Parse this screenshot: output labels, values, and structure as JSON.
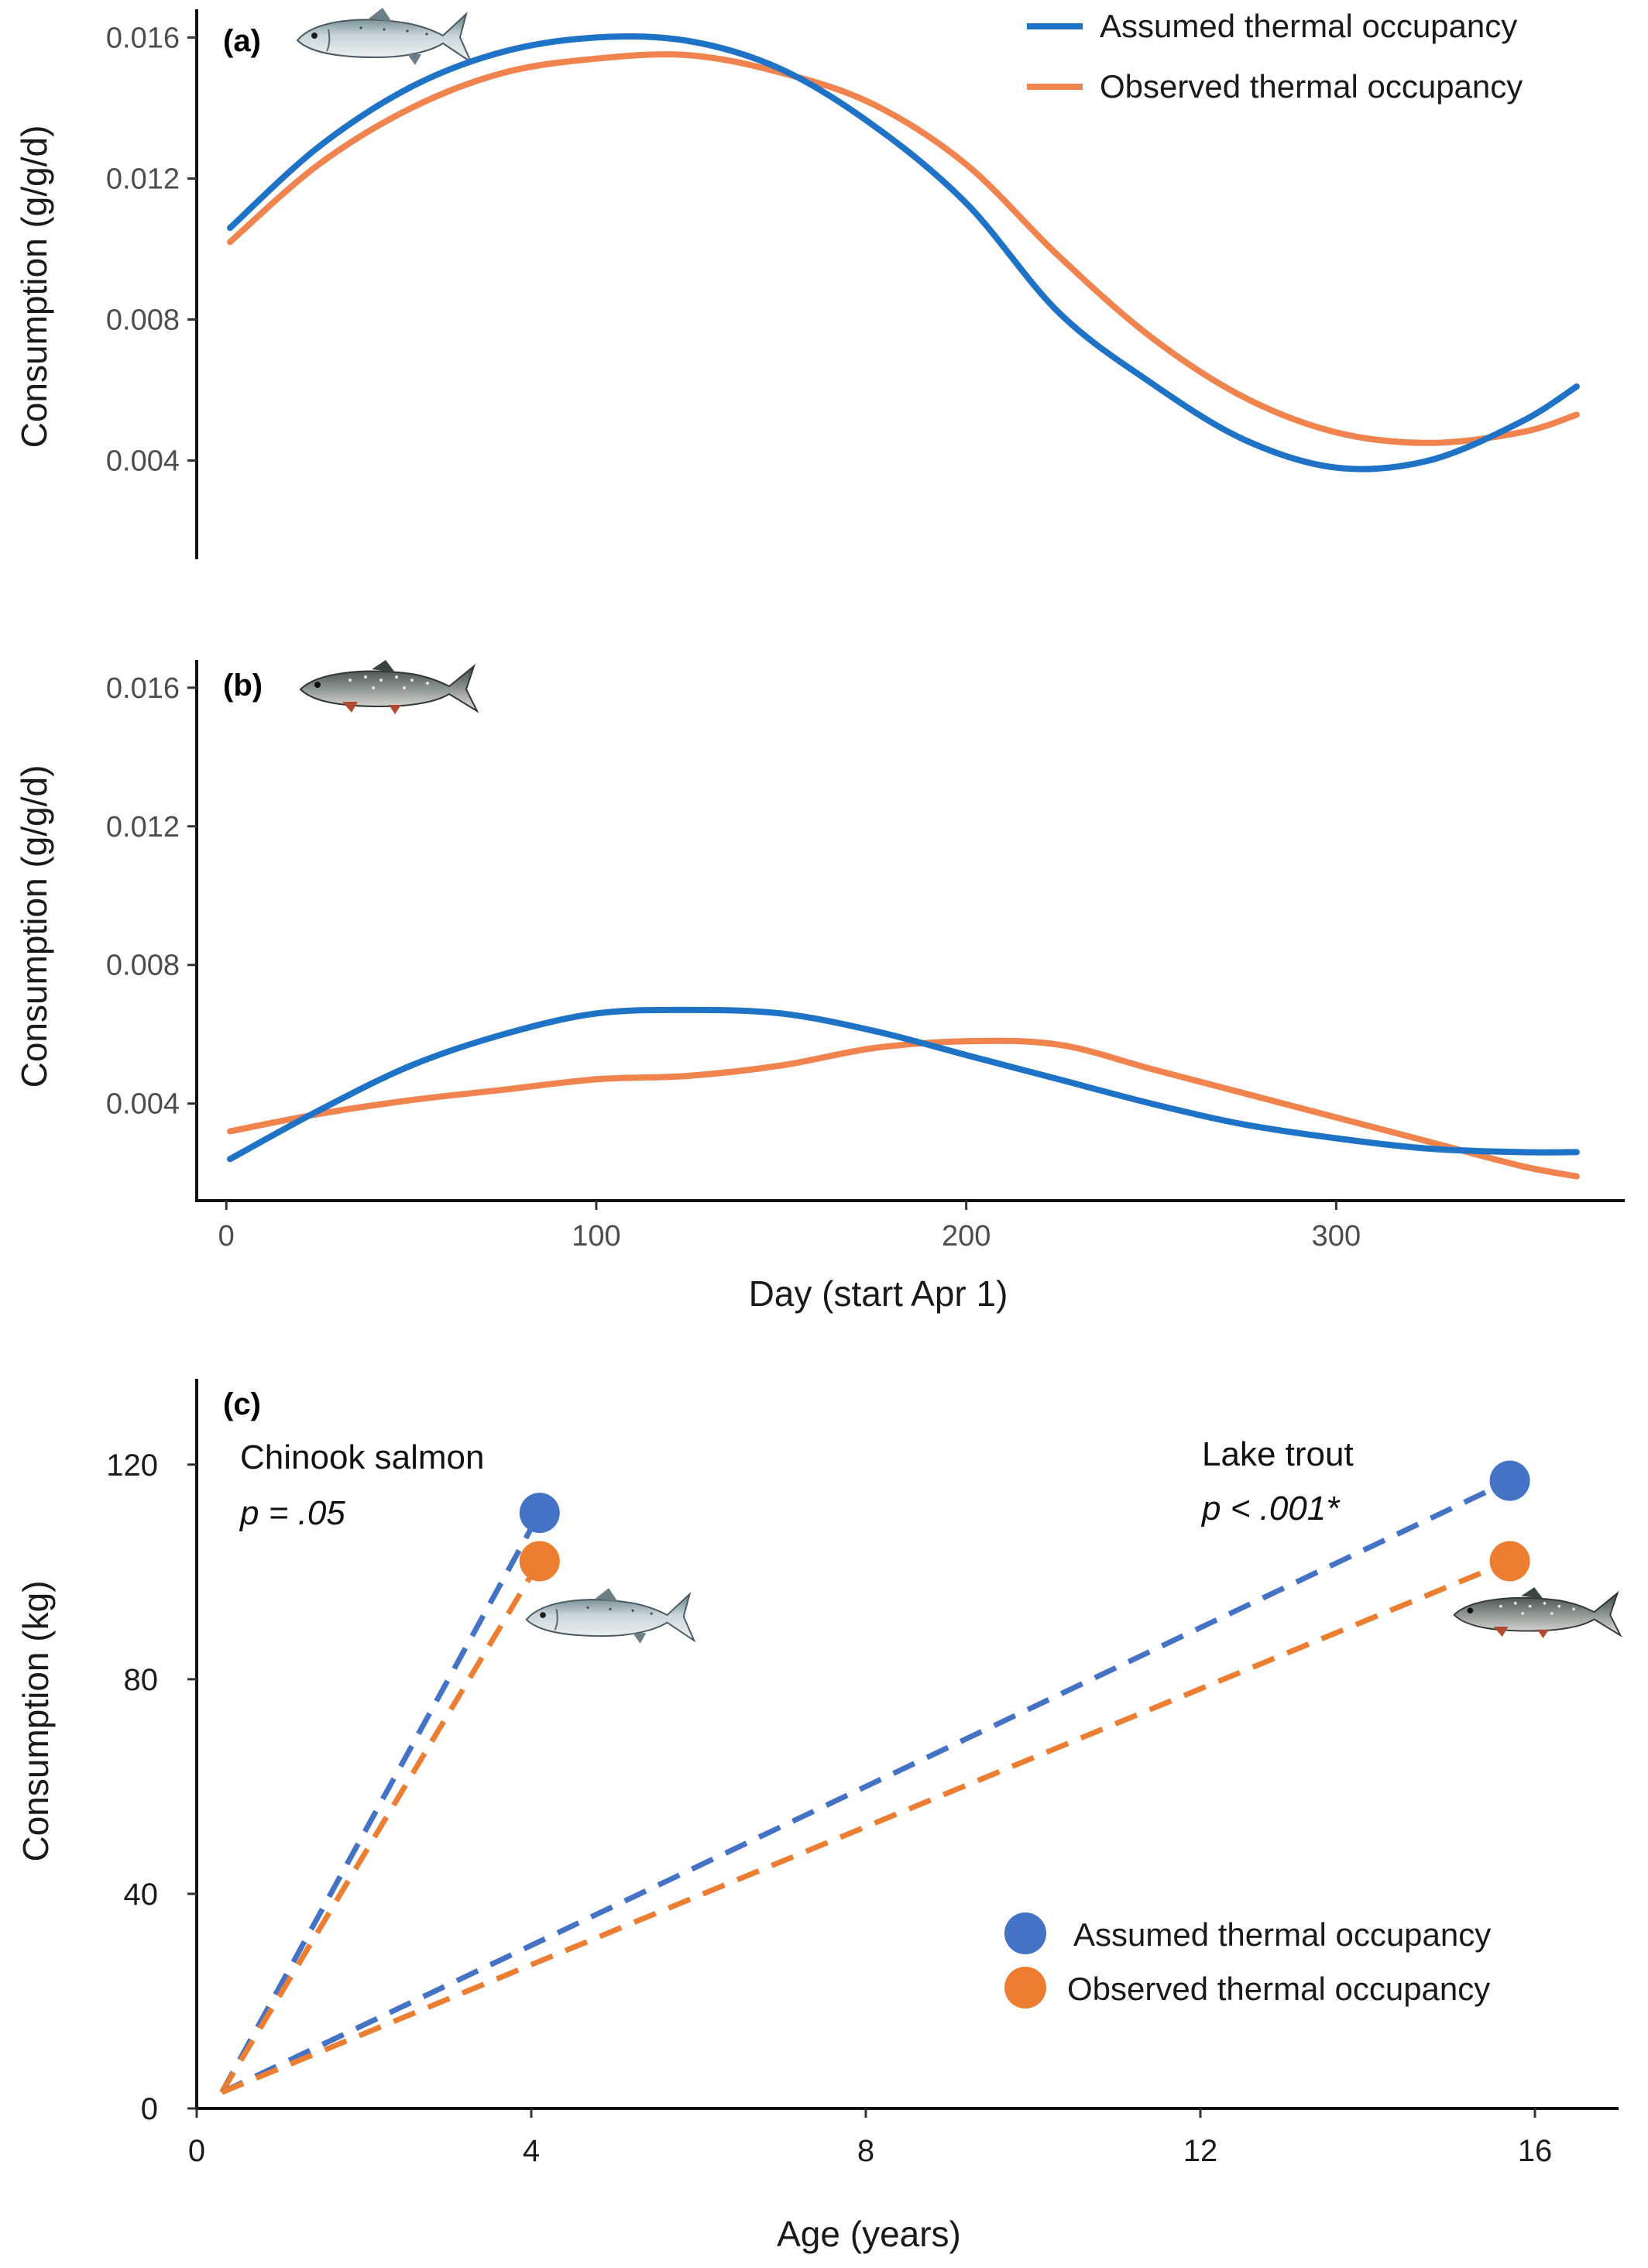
{
  "colors": {
    "assumed_line": "#1f73c7",
    "observed_line": "#f0834e",
    "assumed_point": "#4472c4",
    "observed_point": "#ed7d31",
    "axis": "#111111"
  },
  "icons": [
    "chinook-salmon-icon",
    "lake-trout-icon"
  ],
  "chart_data": [
    {
      "panel": "(a)",
      "type": "line",
      "xlabel": "",
      "ylabel": "Consumption (g/g/d)",
      "xlim": [
        -8,
        378
      ],
      "ylim": [
        0.0012,
        0.0168
      ],
      "yticks": [
        0.004,
        0.008,
        0.012,
        0.016
      ],
      "ytick_labels": [
        "0.004",
        "0.008",
        "0.012",
        "0.016"
      ],
      "legend": {
        "position": "top-right",
        "entries": [
          "Assumed thermal occupancy",
          "Observed thermal occupancy"
        ]
      },
      "series": [
        {
          "name": "Assumed thermal occupancy",
          "x": [
            1,
            25,
            50,
            75,
            100,
            125,
            150,
            175,
            200,
            225,
            250,
            275,
            300,
            325,
            350,
            365
          ],
          "y": [
            0.0106,
            0.0129,
            0.0146,
            0.0156,
            0.016,
            0.0159,
            0.0151,
            0.0135,
            0.0113,
            0.0082,
            0.0062,
            0.0046,
            0.0038,
            0.004,
            0.0051,
            0.0061
          ]
        },
        {
          "name": "Observed thermal occupancy",
          "x": [
            1,
            25,
            50,
            75,
            100,
            125,
            150,
            175,
            200,
            225,
            250,
            275,
            300,
            325,
            350,
            365
          ],
          "y": [
            0.0102,
            0.0124,
            0.014,
            0.015,
            0.0154,
            0.0155,
            0.015,
            0.0141,
            0.0124,
            0.0098,
            0.0075,
            0.0058,
            0.0048,
            0.0045,
            0.0048,
            0.0053
          ]
        }
      ]
    },
    {
      "panel": "(b)",
      "type": "line",
      "xlabel": "Day (start Apr 1)",
      "ylabel": "Consumption (g/g/d)",
      "xlim": [
        -8,
        378
      ],
      "ylim": [
        0.0012,
        0.0168
      ],
      "xticks": [
        0,
        100,
        200,
        300
      ],
      "xtick_labels": [
        "0",
        "100",
        "200",
        "300"
      ],
      "yticks": [
        0.004,
        0.008,
        0.012,
        0.016
      ],
      "ytick_labels": [
        "0.004",
        "0.008",
        "0.012",
        "0.016"
      ],
      "series": [
        {
          "name": "Assumed thermal occupancy",
          "x": [
            1,
            25,
            50,
            75,
            100,
            125,
            150,
            175,
            200,
            225,
            250,
            275,
            300,
            325,
            350,
            365
          ],
          "y": [
            0.0024,
            0.0038,
            0.0051,
            0.006,
            0.0066,
            0.0067,
            0.0066,
            0.0061,
            0.0054,
            0.0047,
            0.004,
            0.0034,
            0.003,
            0.0027,
            0.0026,
            0.0026
          ]
        },
        {
          "name": "Observed thermal occupancy",
          "x": [
            1,
            25,
            50,
            75,
            100,
            125,
            150,
            175,
            200,
            225,
            250,
            275,
            300,
            325,
            350,
            365
          ],
          "y": [
            0.0032,
            0.0037,
            0.0041,
            0.0044,
            0.0047,
            0.0048,
            0.0051,
            0.0056,
            0.0058,
            0.0057,
            0.005,
            0.0043,
            0.0036,
            0.0029,
            0.0022,
            0.0019
          ]
        }
      ]
    },
    {
      "panel": "(c)",
      "type": "scatter",
      "xlabel": "Age (years)",
      "ylabel": "Consumption (kg)",
      "xlim": [
        0,
        17
      ],
      "ylim": [
        0,
        136
      ],
      "xticks": [
        0,
        4,
        8,
        12,
        16
      ],
      "xtick_labels": [
        "0",
        "4",
        "8",
        "12",
        "16"
      ],
      "yticks": [
        0,
        40,
        80,
        120
      ],
      "ytick_labels": [
        "0",
        "40",
        "80",
        "120"
      ],
      "legend": {
        "position": "bottom-right",
        "entries": [
          "Assumed thermal occupancy",
          "Observed thermal occupancy"
        ]
      },
      "origin": {
        "x": 0.3,
        "y": 3
      },
      "groups": [
        {
          "label": "Chinook salmon",
          "p_text": "p = .05",
          "x": 4.1,
          "assumed": 111,
          "observed": 102
        },
        {
          "label": "Lake trout",
          "p_text": "p < .001*",
          "x": 15.7,
          "assumed": 117,
          "observed": 102
        }
      ]
    }
  ]
}
